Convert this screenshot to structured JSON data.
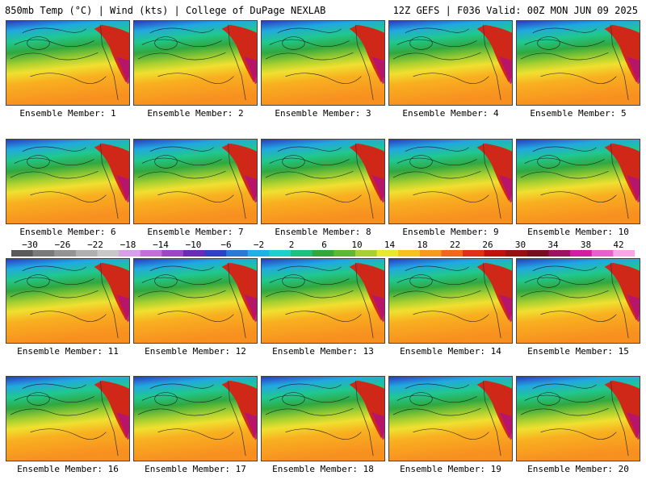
{
  "header": {
    "left": "850mb Temp (°C) | Wind (kts) | College of DuPage NEXLAB",
    "right": "12Z GEFS | F036 Valid: 00Z MON JUN 09 2025"
  },
  "members": [
    "Ensemble Member: 1",
    "Ensemble Member: 2",
    "Ensemble Member: 3",
    "Ensemble Member: 4",
    "Ensemble Member: 5",
    "Ensemble Member: 6",
    "Ensemble Member: 7",
    "Ensemble Member: 8",
    "Ensemble Member: 9",
    "Ensemble Member: 10",
    "Ensemble Member: 11",
    "Ensemble Member: 12",
    "Ensemble Member: 13",
    "Ensemble Member: 14",
    "Ensemble Member: 15",
    "Ensemble Member: 16",
    "Ensemble Member: 17",
    "Ensemble Member: 18",
    "Ensemble Member: 19",
    "Ensemble Member: 20"
  ],
  "colorbar": {
    "ticks": [
      "−30",
      "−26",
      "−22",
      "−18",
      "−14",
      "−10",
      "−6",
      "−2",
      "2",
      "6",
      "10",
      "14",
      "18",
      "22",
      "26",
      "30",
      "34",
      "38",
      "42"
    ],
    "colors": [
      "#5a5a5a",
      "#7a7a7a",
      "#949494",
      "#b0b0b0",
      "#c8c8c8",
      "#d8a0e8",
      "#c070d8",
      "#9a48c8",
      "#6a2cb8",
      "#3040c8",
      "#2a78d8",
      "#22b0e8",
      "#20d0c8",
      "#20c080",
      "#30a840",
      "#60b830",
      "#a8d030",
      "#e8e830",
      "#f8c020",
      "#f89820",
      "#f06818",
      "#e03018",
      "#c01010",
      "#981010",
      "#780c20",
      "#a01060",
      "#d020a0",
      "#e860c8",
      "#f8a8e8"
    ]
  }
}
